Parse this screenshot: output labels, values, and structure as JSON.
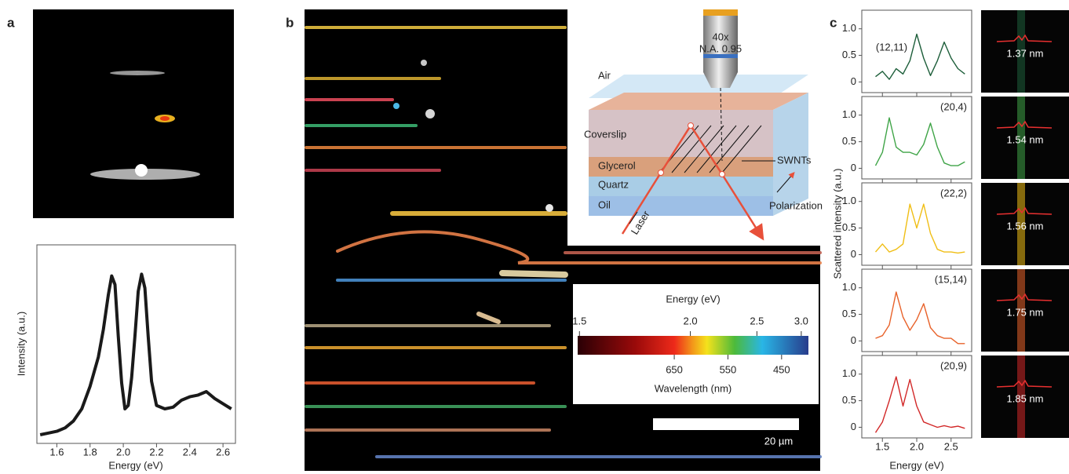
{
  "panel_labels": [
    "a",
    "b",
    "c"
  ],
  "chart_data": [
    {
      "type": "line",
      "xlabel": "Energy (eV)",
      "ylabel": "Intensity (a.u.)",
      "color": "#1a1a1a",
      "x": [
        1.5,
        1.55,
        1.6,
        1.65,
        1.7,
        1.75,
        1.8,
        1.85,
        1.88,
        1.91,
        1.93,
        1.95,
        1.97,
        1.99,
        2.01,
        2.03,
        2.05,
        2.07,
        2.09,
        2.11,
        2.13,
        2.15,
        2.17,
        2.2,
        2.25,
        2.3,
        2.35,
        2.4,
        2.45,
        2.5,
        2.55,
        2.6,
        2.65
      ],
      "values": [
        0.05,
        0.06,
        0.07,
        0.09,
        0.13,
        0.2,
        0.33,
        0.5,
        0.66,
        0.86,
        0.97,
        0.92,
        0.62,
        0.35,
        0.2,
        0.22,
        0.38,
        0.62,
        0.88,
        0.98,
        0.9,
        0.62,
        0.36,
        0.22,
        0.2,
        0.21,
        0.25,
        0.27,
        0.28,
        0.3,
        0.26,
        0.23,
        0.2
      ],
      "xlim": [
        1.48,
        2.675
      ],
      "xticks": [
        1.6,
        1.8,
        {
          "value": 2,
          "label": "2.0"
        },
        2.2,
        2.4,
        2.6
      ],
      "ylim": [
        0,
        1.15
      ]
    },
    {
      "type": "line",
      "annotation": "(12,11)",
      "color": "#1d5e3a",
      "x": [
        1.4,
        1.5,
        1.6,
        1.7,
        1.8,
        1.9,
        2.0,
        2.1,
        2.2,
        2.3,
        2.4,
        2.5,
        2.6,
        2.7
      ],
      "values": [
        0.1,
        0.2,
        0.05,
        0.25,
        0.15,
        0.4,
        0.9,
        0.45,
        0.12,
        0.4,
        0.75,
        0.45,
        0.25,
        0.15
      ],
      "xlim": [
        1.2,
        2.8
      ],
      "xticks": [
        1.5,
        {
          "value": 2,
          "label": "2.0"
        },
        2.5
      ],
      "ylim": [
        -0.2,
        1.35
      ],
      "yticks": [
        0,
        0.5,
        {
          "value": 1,
          "label": "1.0"
        }
      ]
    },
    {
      "type": "line",
      "annotation": "(20,4)",
      "color": "#3fa447",
      "x": [
        1.4,
        1.5,
        1.6,
        1.7,
        1.8,
        1.9,
        2.0,
        2.1,
        2.2,
        2.3,
        2.4,
        2.5,
        2.6,
        2.7
      ],
      "values": [
        0.05,
        0.3,
        0.95,
        0.4,
        0.3,
        0.3,
        0.25,
        0.45,
        0.85,
        0.4,
        0.1,
        0.05,
        0.05,
        0.12
      ],
      "xlim": [
        1.2,
        2.8
      ],
      "xticks": [
        1.5,
        {
          "value": 2,
          "label": "2.0"
        },
        2.5
      ],
      "ylim": [
        -0.2,
        1.35
      ],
      "yticks": [
        0,
        0.5,
        {
          "value": 1,
          "label": "1.0"
        }
      ]
    },
    {
      "type": "line",
      "annotation": "(22,2)",
      "color": "#f0be14",
      "x": [
        1.4,
        1.5,
        1.6,
        1.7,
        1.8,
        1.9,
        2.0,
        2.1,
        2.2,
        2.3,
        2.4,
        2.5,
        2.6,
        2.7
      ],
      "values": [
        0.05,
        0.2,
        0.05,
        0.1,
        0.2,
        0.95,
        0.5,
        0.95,
        0.4,
        0.1,
        0.05,
        0.05,
        0.03,
        0.05
      ],
      "xlim": [
        1.2,
        2.8
      ],
      "xticks": [
        1.5,
        {
          "value": 2,
          "label": "2.0"
        },
        2.5
      ],
      "ylim": [
        -0.2,
        1.35
      ],
      "yticks": [
        0,
        0.5,
        {
          "value": 1,
          "label": "1.0"
        }
      ]
    },
    {
      "type": "line",
      "annotation": "(15,14)",
      "color": "#e8622a",
      "x": [
        1.4,
        1.5,
        1.6,
        1.7,
        1.8,
        1.9,
        2.0,
        2.1,
        2.2,
        2.3,
        2.4,
        2.5,
        2.6,
        2.7
      ],
      "values": [
        0.05,
        0.1,
        0.3,
        0.92,
        0.45,
        0.2,
        0.4,
        0.7,
        0.25,
        0.1,
        0.05,
        0.05,
        -0.05,
        -0.05
      ],
      "xlim": [
        1.2,
        2.8
      ],
      "xticks": [
        1.5,
        {
          "value": 2,
          "label": "2.0"
        },
        2.5
      ],
      "ylim": [
        -0.2,
        1.35
      ],
      "yticks": [
        0,
        0.5,
        {
          "value": 1,
          "label": "1.0"
        }
      ]
    },
    {
      "type": "line",
      "annotation": "(20,9)",
      "color": "#d22828",
      "x": [
        1.4,
        1.5,
        1.6,
        1.7,
        1.8,
        1.9,
        2.0,
        2.1,
        2.2,
        2.3,
        2.4,
        2.5,
        2.6,
        2.7
      ],
      "values": [
        -0.1,
        0.1,
        0.5,
        0.95,
        0.4,
        0.9,
        0.4,
        0.1,
        0.05,
        0,
        0.03,
        0,
        0.02,
        -0.02
      ],
      "xlim": [
        1.2,
        2.8
      ],
      "xticks": [
        1.5,
        {
          "value": 2,
          "label": "2.0"
        },
        2.5
      ],
      "ylim": [
        -0.2,
        1.35
      ],
      "yticks": [
        0,
        0.5,
        {
          "value": 1,
          "label": "1.0"
        }
      ]
    }
  ],
  "panel_c": {
    "xlabel": "Energy (eV)",
    "ylabel": "Scattered intensity (a.u.)",
    "diameters": [
      "1.37 nm",
      "1.54 nm",
      "1.56 nm",
      "1.75 nm",
      "1.85 nm"
    ]
  },
  "schematic": {
    "magnification": "40x",
    "aperture": "N.A. 0.95",
    "layers": [
      "Air",
      "Coverslip",
      "Glycerol",
      "Quartz",
      "Oil"
    ],
    "swnts": "SWNTs",
    "polarization": "Polarization",
    "laser": "Laser"
  },
  "colorbar": {
    "title": "Energy (eV)",
    "ticks": [
      1.5,
      {
        "value": 2,
        "label": "2.0"
      },
      2.5,
      {
        "value": 3,
        "label": "3.0"
      }
    ],
    "xlim": [
      830,
      400
    ],
    "wavelength_ticks": [
      650,
      550,
      450
    ],
    "wavelength_label": "Wavelength (nm)"
  },
  "scale_bar": "20 µm"
}
